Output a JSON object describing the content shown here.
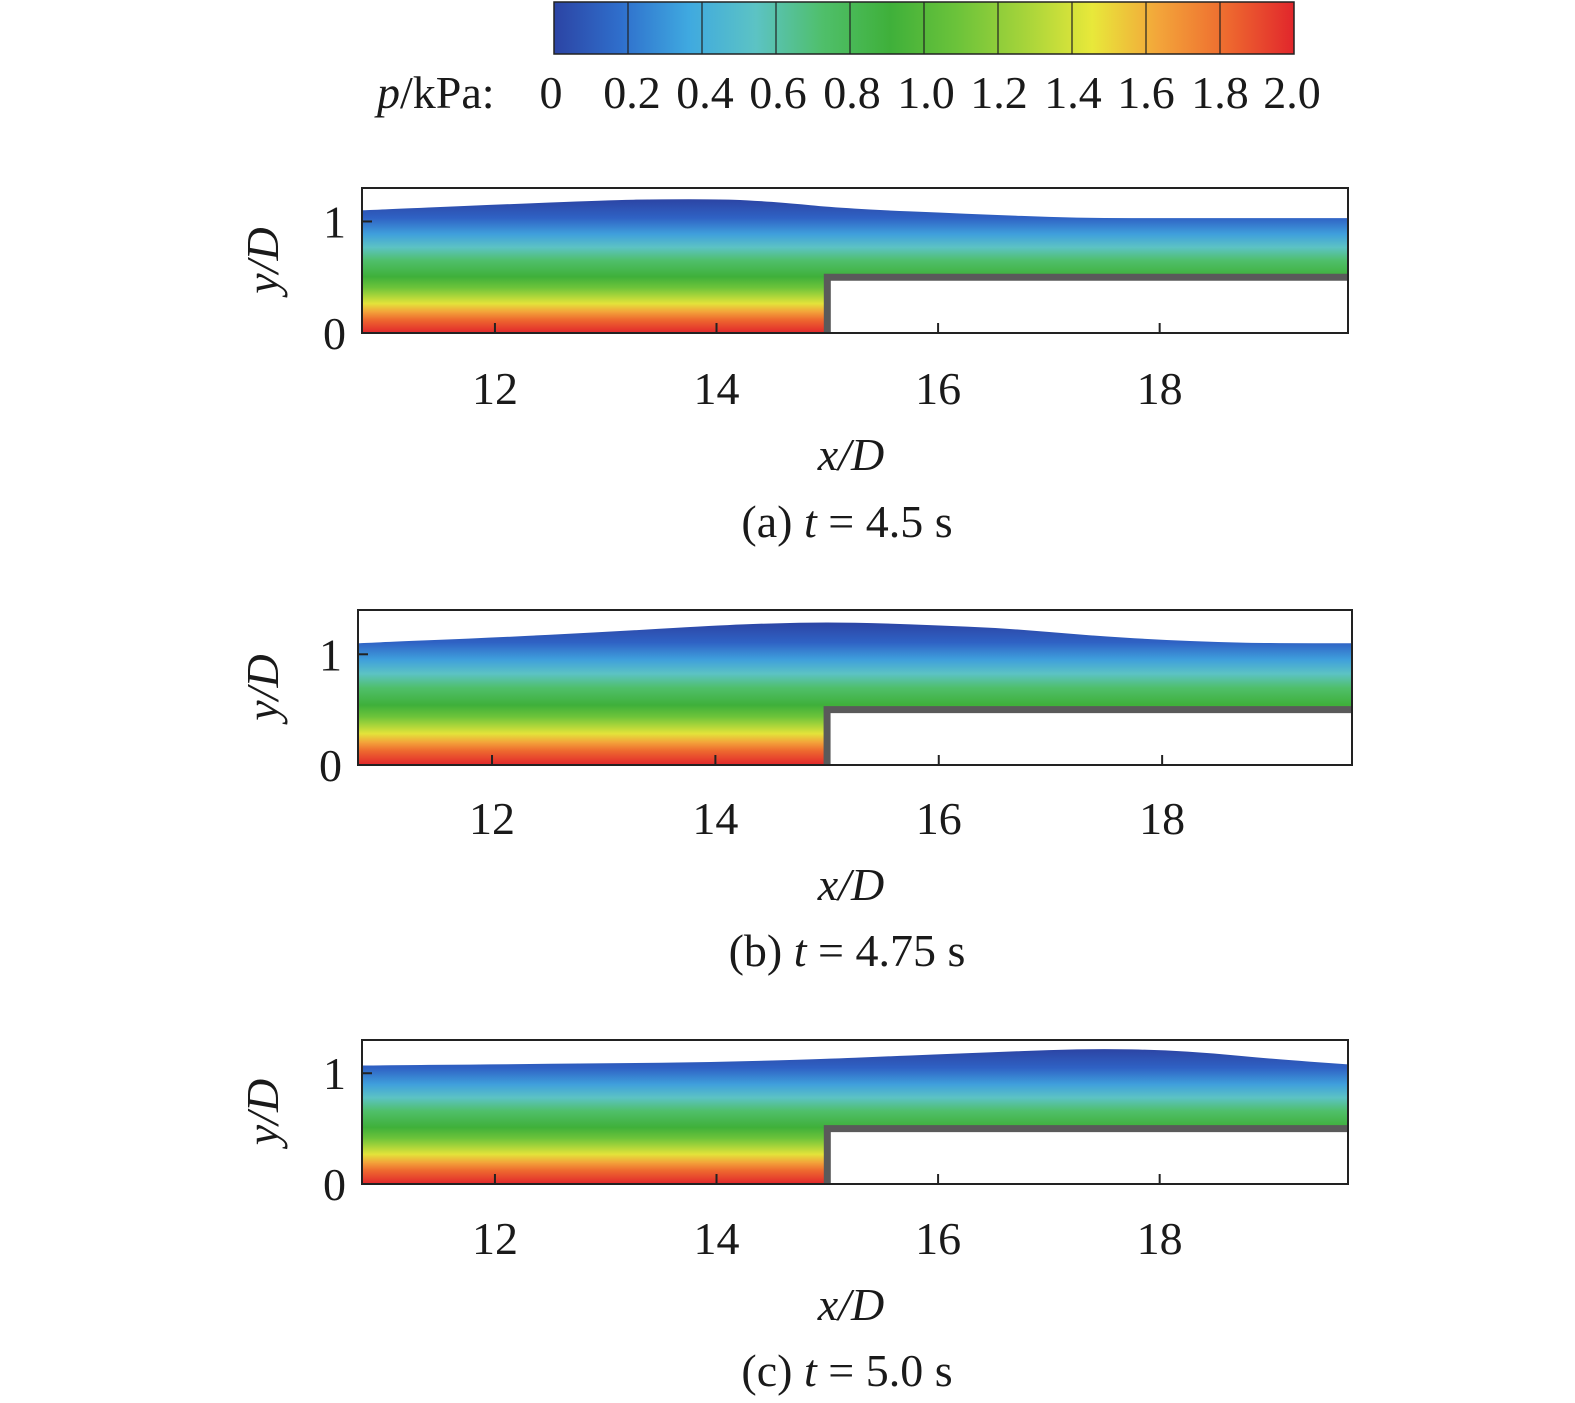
{
  "colorbar": {
    "label_prefix": "p",
    "label_unit": "/kPa:",
    "ticks": [
      "0",
      "0.2",
      "0.4",
      "0.6",
      "0.8",
      "1.0",
      "1.2",
      "1.4",
      "1.6",
      "1.8",
      "2.0"
    ],
    "range": [
      0,
      2.0
    ],
    "colors": [
      "#2c44a4",
      "#2f6fcc",
      "#3fa9e0",
      "#5cc3c4",
      "#4fbf6a",
      "#3fb03a",
      "#6cc33a",
      "#a6d43a",
      "#e8e83a",
      "#f3a43a",
      "#ee6a2f",
      "#e1262c"
    ]
  },
  "chart_data": [
    {
      "type": "heatmap",
      "panel_label": "(a) ",
      "time_symbol": "t",
      "time_value": " = 4.5 s",
      "xlabel": "x/D",
      "ylabel": "y/D",
      "xticks": [
        "12",
        "14",
        "16",
        "18"
      ],
      "yticks": [
        "0",
        "1"
      ],
      "xlim": [
        10.8,
        19.7
      ],
      "ylim": [
        0,
        1.3
      ],
      "step": {
        "x": 15.0,
        "height": 0.5
      },
      "free_surface": {
        "x": [
          10.8,
          12,
          13,
          13.5,
          14,
          14.3,
          14.7,
          15,
          15.5,
          16,
          16.5,
          17,
          17.5,
          18,
          18.5,
          19,
          19.7
        ],
        "y": [
          1.1,
          1.15,
          1.19,
          1.2,
          1.2,
          1.19,
          1.16,
          1.13,
          1.1,
          1.08,
          1.06,
          1.04,
          1.03,
          1.03,
          1.03,
          1.03,
          1.03
        ]
      }
    },
    {
      "type": "heatmap",
      "panel_label": "(b) ",
      "time_symbol": "t",
      "time_value": " = 4.75 s",
      "xlabel": "x/D",
      "ylabel": "y/D",
      "xticks": [
        "12",
        "14",
        "16",
        "18"
      ],
      "yticks": [
        "0",
        "1"
      ],
      "xlim": [
        10.8,
        19.7
      ],
      "ylim": [
        0,
        1.4
      ],
      "step": {
        "x": 15.0,
        "height": 0.5
      },
      "free_surface": {
        "x": [
          10.8,
          12,
          13,
          14,
          14.5,
          15,
          15.5,
          16,
          16.5,
          17,
          17.5,
          18,
          18.5,
          19,
          19.7
        ],
        "y": [
          1.1,
          1.15,
          1.2,
          1.26,
          1.28,
          1.29,
          1.28,
          1.26,
          1.24,
          1.2,
          1.16,
          1.13,
          1.11,
          1.1,
          1.1
        ]
      }
    },
    {
      "type": "heatmap",
      "panel_label": "(c) ",
      "time_symbol": "t",
      "time_value": " = 5.0 s",
      "xlabel": "x/D",
      "ylabel": "y/D",
      "xticks": [
        "12",
        "14",
        "16",
        "18"
      ],
      "yticks": [
        "0",
        "1"
      ],
      "xlim": [
        10.8,
        19.7
      ],
      "ylim": [
        0,
        1.3
      ],
      "step": {
        "x": 15.0,
        "height": 0.5
      },
      "free_surface": {
        "x": [
          10.8,
          12,
          13,
          14,
          15,
          15.5,
          16,
          16.5,
          17,
          17.5,
          18,
          18.5,
          19,
          19.7
        ],
        "y": [
          1.07,
          1.08,
          1.09,
          1.1,
          1.13,
          1.15,
          1.17,
          1.19,
          1.21,
          1.22,
          1.21,
          1.18,
          1.13,
          1.08
        ]
      }
    }
  ]
}
